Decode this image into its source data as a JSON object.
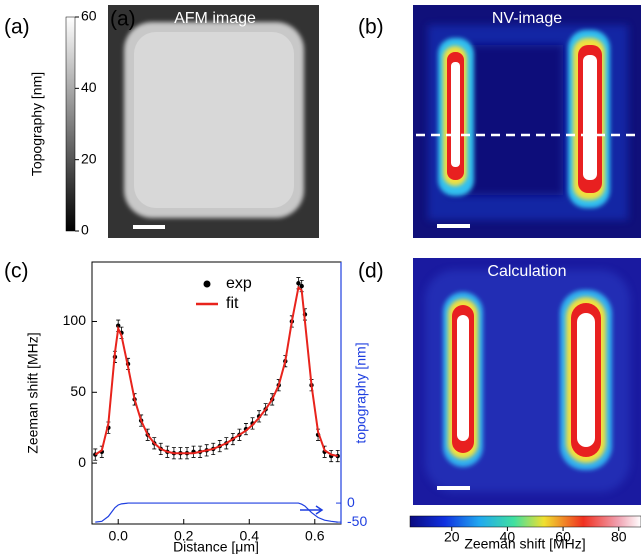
{
  "panels": [
    {
      "label": "(a)",
      "inset_label": "(a)",
      "title": "AFM image"
    },
    {
      "label": "(b)",
      "title": "NV-image"
    },
    {
      "label": "(c)"
    },
    {
      "label": "(d)",
      "title": "Calculation"
    }
  ],
  "afm_colorbar": {
    "label": "Topography [nm]",
    "lim": [
      0,
      60
    ],
    "ticks": [
      0,
      20,
      40,
      60
    ]
  },
  "zeeman_colorbar": {
    "label": "Zeeman shift [MHz]",
    "lim": [
      5,
      88
    ],
    "ticks": [
      20,
      40,
      60,
      80
    ]
  },
  "chart_data": {
    "type": "line",
    "xlabel": "Distance [μm]",
    "ylabel": "Zeeman shift [MHz]",
    "y2label": "topography [nm]",
    "x": [
      -0.07,
      -0.05,
      -0.03,
      -0.01,
      0.0,
      0.01,
      0.03,
      0.05,
      0.07,
      0.09,
      0.11,
      0.13,
      0.15,
      0.17,
      0.19,
      0.21,
      0.23,
      0.25,
      0.27,
      0.29,
      0.31,
      0.33,
      0.35,
      0.37,
      0.39,
      0.41,
      0.43,
      0.45,
      0.47,
      0.49,
      0.51,
      0.53,
      0.55,
      0.56,
      0.57,
      0.59,
      0.61,
      0.63,
      0.65,
      0.67
    ],
    "series": [
      {
        "name": "exp",
        "color": "#000000",
        "values": [
          6,
          8,
          25,
          75,
          97,
          92,
          70,
          45,
          30,
          20,
          14,
          10,
          8,
          7,
          7,
          7,
          8,
          8,
          9,
          10,
          12,
          14,
          17,
          20,
          24,
          28,
          33,
          38,
          45,
          55,
          72,
          100,
          127,
          125,
          105,
          55,
          20,
          8,
          5,
          5
        ],
        "errors": [
          4,
          4,
          4,
          4,
          4,
          4,
          4,
          4,
          4,
          4,
          4,
          4,
          4,
          4,
          4,
          4,
          4,
          4,
          4,
          4,
          4,
          4,
          4,
          4,
          4,
          4,
          4,
          4,
          4,
          4,
          4,
          4,
          4,
          4,
          4,
          4,
          4,
          4,
          4,
          4
        ]
      },
      {
        "name": "fit",
        "color": "#e8231c",
        "values": [
          6,
          9,
          28,
          78,
          95,
          90,
          68,
          45,
          30,
          20,
          14,
          10,
          8,
          7,
          7,
          7,
          7,
          8,
          9,
          10,
          12,
          14,
          17,
          20,
          23,
          27,
          32,
          38,
          45,
          55,
          72,
          100,
          124,
          122,
          100,
          55,
          22,
          9,
          6,
          5
        ]
      },
      {
        "color": "#1f3fe0",
        "axis": "y2",
        "values": [
          -50,
          -48,
          -35,
          -12,
          -5,
          -2,
          0,
          0,
          0,
          0,
          0,
          0,
          0,
          0,
          0,
          0,
          0,
          0,
          0,
          0,
          0,
          0,
          0,
          0,
          0,
          0,
          0,
          0,
          0,
          0,
          0,
          0,
          0,
          -3,
          -8,
          -25,
          -38,
          -45,
          -48,
          -50
        ]
      }
    ],
    "xlim": [
      -0.08,
      0.68
    ],
    "ylim": [
      -43,
      142
    ],
    "y2lim": [
      -55,
      634
    ],
    "xticks": [
      {
        "value": 0,
        "label": "0.0"
      },
      0.2,
      0.4,
      0.6
    ],
    "yticks": [
      0,
      50,
      100
    ],
    "y2ticks": [
      0,
      -50
    ]
  }
}
